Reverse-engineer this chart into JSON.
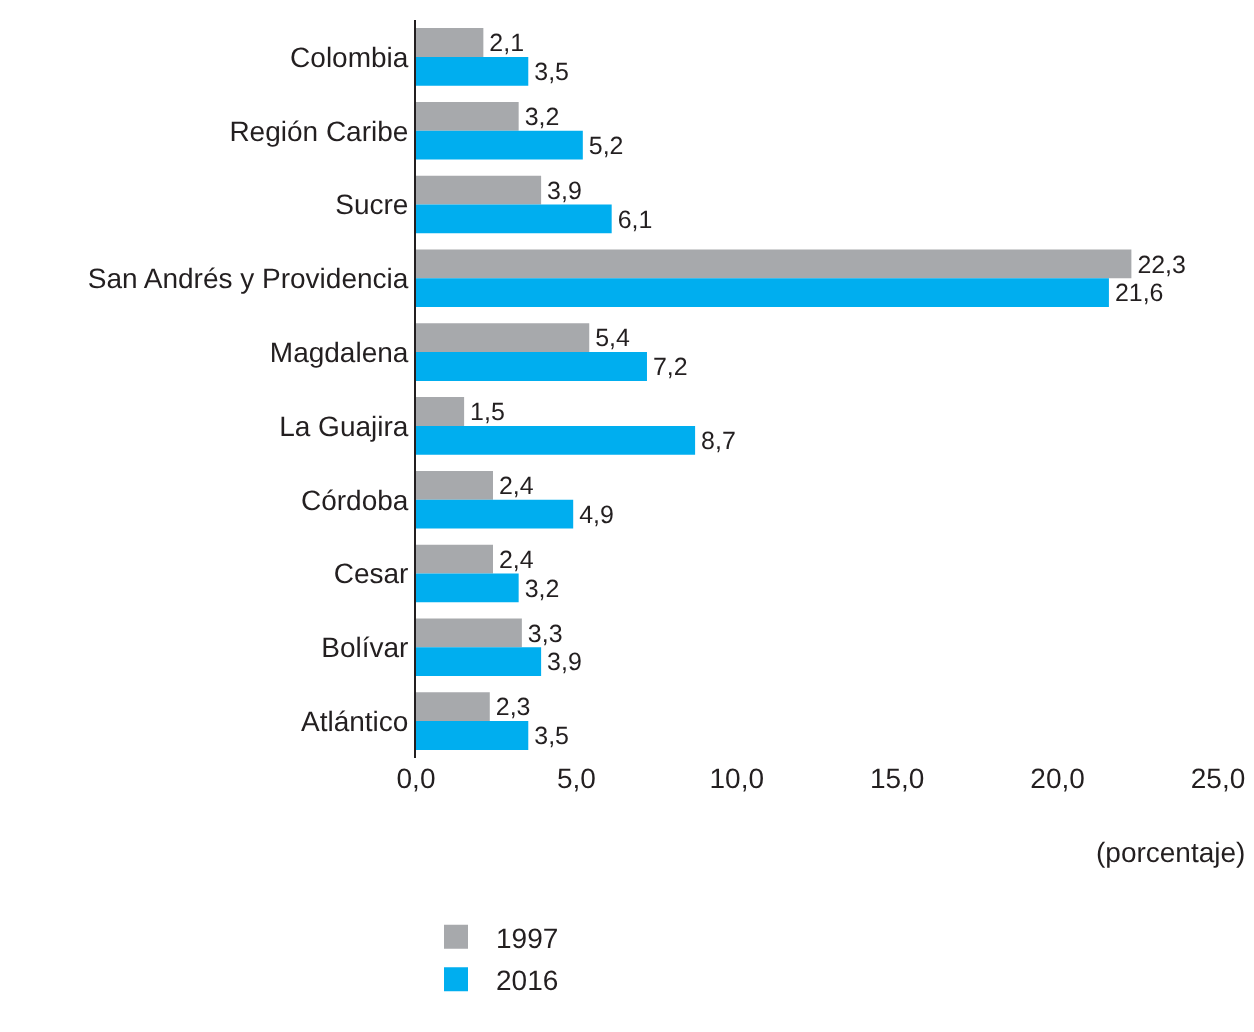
{
  "chart_data": {
    "type": "bar",
    "orientation": "horizontal",
    "xlabel": "(porcentaje)",
    "categories": [
      "Colombia",
      "Región Caribe",
      "Sucre",
      "San Andrés y Providencia",
      "Magdalena",
      "La Guajira",
      "Córdoba",
      "Cesar",
      "Bolívar",
      "Atlántico"
    ],
    "series": [
      {
        "name": "1997",
        "color": "#a7a9ac",
        "values": [
          2.1,
          3.2,
          3.9,
          22.3,
          5.4,
          1.5,
          2.4,
          2.4,
          3.3,
          2.3
        ],
        "value_labels": [
          "2,1",
          "3,2",
          "3,9",
          "22,3",
          "5,4",
          "1,5",
          "2,4",
          "2,4",
          "3,3",
          "2,3"
        ]
      },
      {
        "name": "2016",
        "color": "#00aeef",
        "values": [
          3.5,
          5.2,
          6.1,
          21.6,
          7.2,
          8.7,
          4.9,
          3.2,
          3.9,
          3.5
        ],
        "value_labels": [
          "3,5",
          "5,2",
          "6,1",
          "21,6",
          "7,2",
          "8,7",
          "4,9",
          "3,2",
          "3,9",
          "3,5"
        ]
      }
    ],
    "xlim": [
      0,
      25
    ],
    "xticks": [
      {
        "value": 0,
        "label": "0,0"
      },
      {
        "value": 5,
        "label": "5,0"
      },
      {
        "value": 10,
        "label": "10,0"
      },
      {
        "value": 15,
        "label": "15,0"
      },
      {
        "value": 20,
        "label": "20,0"
      },
      {
        "value": 25,
        "label": "25,0"
      }
    ],
    "grid": false,
    "legend": "bottom"
  }
}
